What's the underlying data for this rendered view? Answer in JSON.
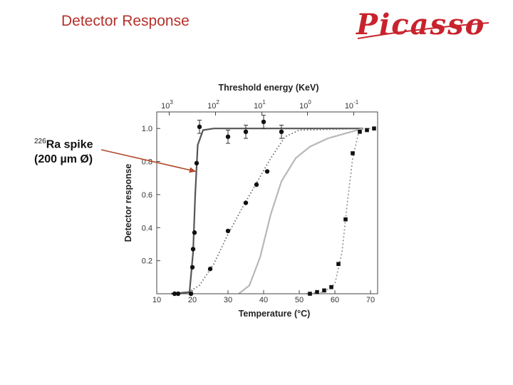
{
  "slide": {
    "title": "Detector Response",
    "logo_text": "Picasso"
  },
  "annotation": {
    "isotope_mass": "226",
    "line1_rest": "Ra spike",
    "line2": "(200 µm Ø)",
    "arrow_target": {
      "x": 21,
      "y": 0.74
    }
  },
  "colors": {
    "title": "#b5312b",
    "logo": "#c8232c",
    "arrow": "#b24a2c",
    "axis": "#444444"
  },
  "chart_data": {
    "type": "scatter",
    "title": "",
    "xlabel": "Temperature (°C)",
    "ylabel": "Detector response",
    "x2label": "Threshold energy (KeV)",
    "xlim": [
      10,
      72
    ],
    "ylim": [
      0,
      1.1
    ],
    "x_ticks": [
      10,
      20,
      30,
      40,
      50,
      60,
      70
    ],
    "y_ticks": [
      0.2,
      0.4,
      0.6,
      0.8,
      1.0
    ],
    "y_tick_labels": [
      "0.2",
      "0.4",
      "0.6",
      "0.8",
      "1.0"
    ],
    "top_ticks": [
      {
        "base": "10",
        "exp": "3",
        "x": 13.5
      },
      {
        "base": "10",
        "exp": "2",
        "x": 26.5
      },
      {
        "base": "10",
        "exp": "1",
        "x": 39.5
      },
      {
        "base": "10",
        "exp": "0",
        "x": 52.3
      },
      {
        "base": "10",
        "exp": "-1",
        "x": 65.3
      }
    ],
    "grid": false,
    "legend": "none",
    "series": [
      {
        "marker": "circle",
        "line": "solid-dark",
        "points": [
          {
            "x": 15,
            "y": 0.0
          },
          {
            "x": 16,
            "y": 0.0
          },
          {
            "x": 19.6,
            "y": 0.0
          },
          {
            "x": 20,
            "y": 0.16
          },
          {
            "x": 20.2,
            "y": 0.27
          },
          {
            "x": 20.6,
            "y": 0.37
          },
          {
            "x": 21.2,
            "y": 0.79
          },
          {
            "x": 22,
            "y": 1.01
          },
          {
            "x": 30,
            "y": 0.95
          },
          {
            "x": 35,
            "y": 0.98
          },
          {
            "x": 40,
            "y": 1.04
          },
          {
            "x": 45,
            "y": 0.98
          }
        ],
        "errors": [
          {
            "x": 22,
            "err": 0.04
          },
          {
            "x": 30,
            "err": 0.04
          },
          {
            "x": 35,
            "err": 0.04
          },
          {
            "x": 40,
            "err": 0.04
          },
          {
            "x": 45,
            "err": 0.04
          }
        ],
        "curve": [
          {
            "x": 14,
            "y": 0.0
          },
          {
            "x": 19.2,
            "y": 0.01
          },
          {
            "x": 20.2,
            "y": 0.25
          },
          {
            "x": 20.8,
            "y": 0.6
          },
          {
            "x": 21.5,
            "y": 0.9
          },
          {
            "x": 23,
            "y": 0.99
          },
          {
            "x": 26,
            "y": 1.0
          },
          {
            "x": 68,
            "y": 1.0
          }
        ]
      },
      {
        "marker": "circle",
        "line": "dotted-dark",
        "points": [
          {
            "x": 25,
            "y": 0.15
          },
          {
            "x": 30,
            "y": 0.38
          },
          {
            "x": 35,
            "y": 0.55
          },
          {
            "x": 38,
            "y": 0.66
          },
          {
            "x": 41,
            "y": 0.74
          }
        ],
        "errors": [],
        "curve": [
          {
            "x": 18,
            "y": 0.0
          },
          {
            "x": 22,
            "y": 0.05
          },
          {
            "x": 26,
            "y": 0.18
          },
          {
            "x": 30,
            "y": 0.36
          },
          {
            "x": 34,
            "y": 0.52
          },
          {
            "x": 38,
            "y": 0.67
          },
          {
            "x": 42,
            "y": 0.82
          },
          {
            "x": 46,
            "y": 0.95
          },
          {
            "x": 50,
            "y": 0.99
          },
          {
            "x": 68,
            "y": 1.0
          }
        ]
      },
      {
        "marker": "none",
        "line": "solid-gray",
        "points": [],
        "errors": [],
        "curve": [
          {
            "x": 33,
            "y": 0.0
          },
          {
            "x": 36,
            "y": 0.05
          },
          {
            "x": 39,
            "y": 0.22
          },
          {
            "x": 42,
            "y": 0.48
          },
          {
            "x": 45,
            "y": 0.68
          },
          {
            "x": 49,
            "y": 0.82
          },
          {
            "x": 53,
            "y": 0.89
          },
          {
            "x": 58,
            "y": 0.94
          },
          {
            "x": 63,
            "y": 0.97
          },
          {
            "x": 68,
            "y": 1.0
          }
        ]
      },
      {
        "marker": "square",
        "line": "dotted-gray",
        "points": [
          {
            "x": 53,
            "y": 0.0
          },
          {
            "x": 55,
            "y": 0.01
          },
          {
            "x": 57,
            "y": 0.02
          },
          {
            "x": 59,
            "y": 0.04
          },
          {
            "x": 61,
            "y": 0.18
          },
          {
            "x": 63,
            "y": 0.45
          },
          {
            "x": 65,
            "y": 0.85
          },
          {
            "x": 67,
            "y": 0.98
          },
          {
            "x": 69,
            "y": 0.99
          },
          {
            "x": 71,
            "y": 1.0
          }
        ],
        "errors": [],
        "curve": [
          {
            "x": 52,
            "y": 0.0
          },
          {
            "x": 57,
            "y": 0.01
          },
          {
            "x": 60,
            "y": 0.06
          },
          {
            "x": 62,
            "y": 0.25
          },
          {
            "x": 63.5,
            "y": 0.55
          },
          {
            "x": 65,
            "y": 0.82
          },
          {
            "x": 66.5,
            "y": 0.96
          },
          {
            "x": 68,
            "y": 1.0
          },
          {
            "x": 71,
            "y": 1.0
          }
        ]
      }
    ]
  }
}
